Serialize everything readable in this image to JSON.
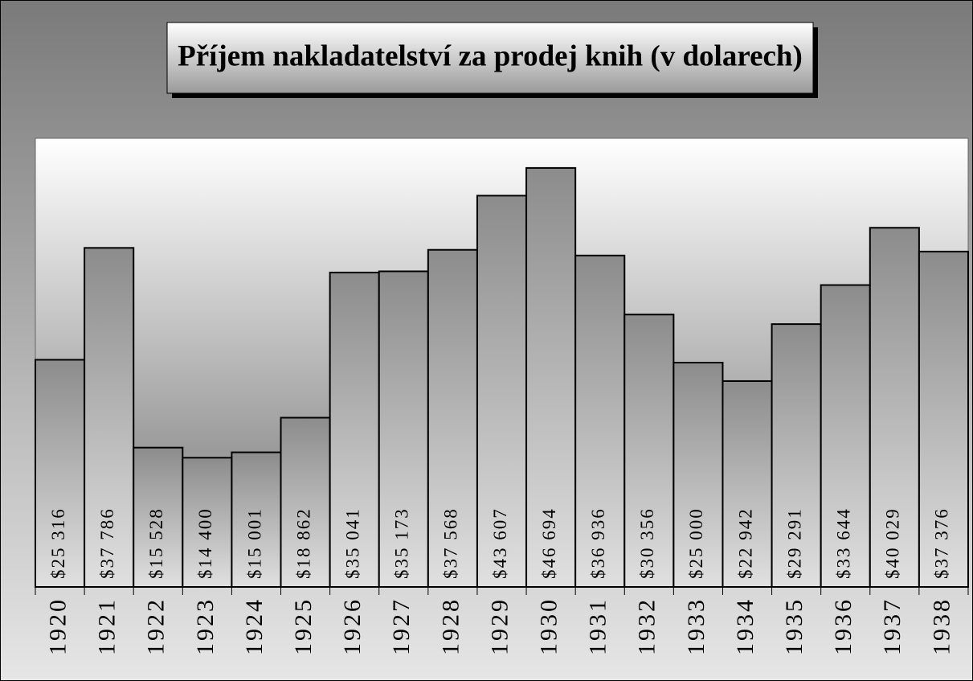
{
  "chart_data": {
    "type": "bar",
    "title": "Příjem nakladatelství za prodej knih (v dolarech)",
    "categories": [
      "1920",
      "1921",
      "1922",
      "1923",
      "1924",
      "1925",
      "1926",
      "1927",
      "1928",
      "1929",
      "1930",
      "1931",
      "1932",
      "1933",
      "1934",
      "1935",
      "1936",
      "1937",
      "1938"
    ],
    "values": [
      25316,
      37786,
      15528,
      14400,
      15001,
      18862,
      35041,
      35173,
      37568,
      43607,
      46694,
      36936,
      30356,
      25000,
      22942,
      29291,
      33644,
      40029,
      37376
    ],
    "value_labels": [
      "$25 316",
      "$37 786",
      "$15 528",
      "$14 400",
      "$15 001",
      "$18 862",
      "$35 041",
      "$35 173",
      "$37 568",
      "$43 607",
      "$46 694",
      "$36 936",
      "$30 356",
      "$25 000",
      "$22 942",
      "$29 291",
      "$33 644",
      "$40 029",
      "$37 376"
    ],
    "color": "#8c8c8c",
    "ylim": [
      0,
      50000
    ]
  }
}
